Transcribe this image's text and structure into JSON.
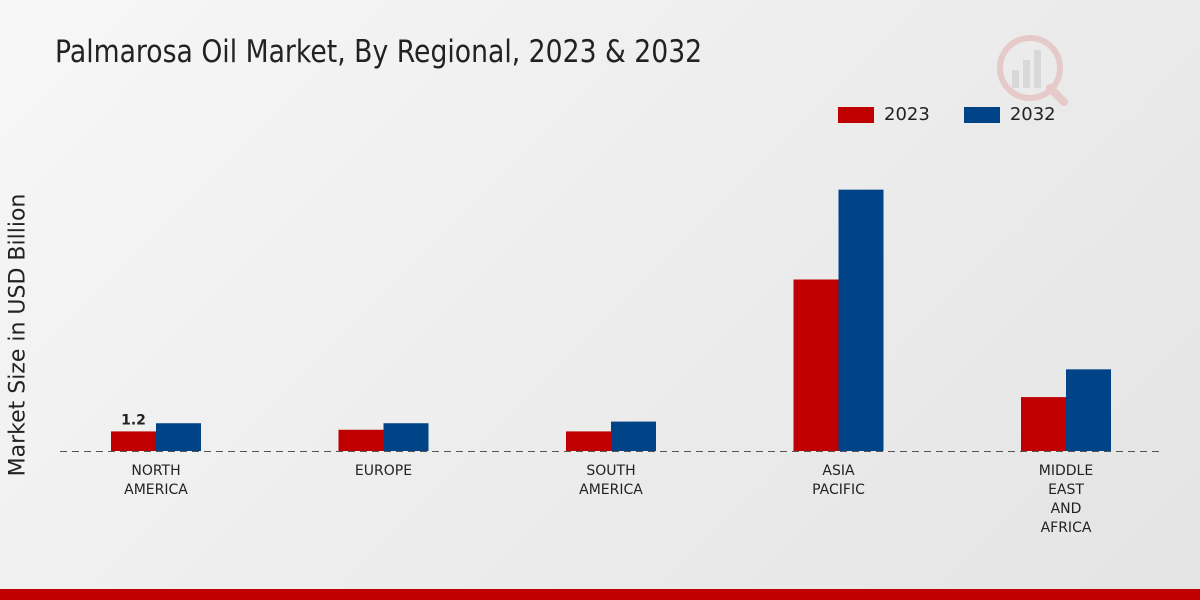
{
  "chart_data": {
    "type": "bar",
    "title": "Palmarosa Oil Market, By Regional, 2023 & 2032",
    "xlabel": "",
    "ylabel": "Market Size in USD Billion",
    "categories": [
      [
        "NORTH",
        "AMERICA"
      ],
      [
        "EUROPE"
      ],
      [
        "SOUTH",
        "AMERICA"
      ],
      [
        "ASIA",
        "PACIFIC"
      ],
      [
        "MIDDLE",
        "EAST",
        "AND",
        "AFRICA"
      ]
    ],
    "series": [
      {
        "name": "2023",
        "color": "#c00000",
        "values": [
          1.2,
          1.3,
          1.2,
          10.5,
          3.3
        ]
      },
      {
        "name": "2032",
        "color": "#004487",
        "values": [
          1.7,
          1.7,
          1.8,
          16.0,
          5.0
        ]
      }
    ],
    "data_labels": [
      {
        "series": 0,
        "category": 0,
        "text": "1.2"
      }
    ],
    "ylim": [
      0,
      18
    ],
    "grid": false,
    "legend_position": "top-right"
  }
}
